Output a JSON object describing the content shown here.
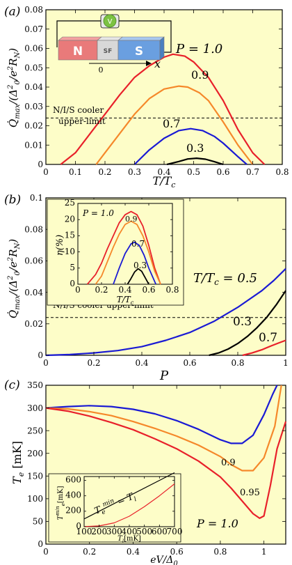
{
  "chart_data": [
    {
      "panel_label": "(a)",
      "type": "line",
      "xlabel": "T/T_c",
      "ylabel": "Q̇_max/(Δ_0^2/e^2 R_N)",
      "xlim": [
        0,
        0.8
      ],
      "ylim": [
        0,
        0.08
      ],
      "xticks": [
        0,
        0.1,
        0.2,
        0.3,
        0.4,
        0.5,
        0.6,
        0.7,
        0.8
      ],
      "yticks": [
        0,
        0.01,
        0.02,
        0.03,
        0.04,
        0.05,
        0.06,
        0.07,
        0.08
      ],
      "xtick_labels": [
        "0",
        "0.1",
        "0.2",
        "0.3",
        "0.4",
        "0.5",
        "0.6",
        "0.7",
        "0.8"
      ],
      "ytick_labels": [
        "0",
        "0.01",
        "0.02",
        "0.03",
        "0.04",
        "0.05",
        "0.06",
        "0.07",
        "0.08"
      ],
      "series": [
        {
          "name": "P = 1.0",
          "color": "#e8202a",
          "x": [
            0.05,
            0.1,
            0.15,
            0.2,
            0.25,
            0.3,
            0.35,
            0.4,
            0.43,
            0.47,
            0.5,
            0.55,
            0.6,
            0.65,
            0.7,
            0.74
          ],
          "values": [
            0.0,
            0.006,
            0.016,
            0.026,
            0.036,
            0.045,
            0.051,
            0.0555,
            0.057,
            0.056,
            0.053,
            0.045,
            0.033,
            0.018,
            0.006,
            0.0
          ]
        },
        {
          "name": "0.9",
          "color": "#f5882a",
          "x": [
            0.17,
            0.2,
            0.25,
            0.3,
            0.35,
            0.4,
            0.45,
            0.48,
            0.52,
            0.55,
            0.6,
            0.65,
            0.7
          ],
          "values": [
            0.0,
            0.006,
            0.016,
            0.026,
            0.034,
            0.039,
            0.0405,
            0.04,
            0.037,
            0.033,
            0.022,
            0.01,
            0.0
          ]
        },
        {
          "name": "0.7",
          "color": "#1a1ad4",
          "x": [
            0.3,
            0.35,
            0.4,
            0.45,
            0.49,
            0.53,
            0.57,
            0.6,
            0.65,
            0.68
          ],
          "values": [
            0.0,
            0.0075,
            0.0135,
            0.0175,
            0.0185,
            0.0175,
            0.0145,
            0.011,
            0.004,
            0.0
          ]
        },
        {
          "name": "0.3",
          "color": "#000000",
          "x": [
            0.41,
            0.45,
            0.48,
            0.51,
            0.54,
            0.57,
            0.6
          ],
          "values": [
            0.0,
            0.0015,
            0.0028,
            0.0032,
            0.0027,
            0.0014,
            0.0
          ]
        }
      ],
      "reference_line": {
        "y": 0.024,
        "label_line1": "N/I/S cooler",
        "label_line2": "upper-limit"
      },
      "annotations": [
        {
          "text": "P = 1.0",
          "color": "#e8202a"
        },
        {
          "text": "0.9",
          "color": "#f5882a"
        },
        {
          "text": "0.7",
          "color": "#1a1ad4"
        },
        {
          "text": "0.3",
          "color": "#000000"
        }
      ],
      "inset_schematic": {
        "left_block": "N",
        "middle_block": "SF",
        "right_block": "S",
        "meter": "V",
        "axis_origin": "0",
        "axis_label": "x"
      }
    },
    {
      "panel_label": "(b)",
      "type": "line",
      "xlabel": "P",
      "ylabel": "Q̇_max/(Δ_0^2/e^2 R_N)",
      "xlim": [
        0,
        1
      ],
      "ylim": [
        0,
        0.1
      ],
      "xticks": [
        0,
        0.2,
        0.4,
        0.6,
        0.8,
        1
      ],
      "yticks": [
        0,
        0.02,
        0.04,
        0.06,
        0.08,
        0.1
      ],
      "xtick_labels": [
        "0",
        "0.2",
        "0.4",
        "0.6",
        "0.8",
        "1"
      ],
      "ytick_labels": [
        "0",
        "0.02",
        "0.04",
        "0.06",
        "0.08",
        "0.1"
      ],
      "series": [
        {
          "name": "T/T_c = 0.5",
          "color": "#1a1ad4",
          "x": [
            0,
            0.1,
            0.2,
            0.3,
            0.4,
            0.5,
            0.6,
            0.7,
            0.8,
            0.9,
            0.95,
            1.0
          ],
          "values": [
            0.0,
            0.0005,
            0.0015,
            0.003,
            0.0055,
            0.0095,
            0.0145,
            0.0215,
            0.0305,
            0.041,
            0.0475,
            0.055
          ]
        },
        {
          "name": "0.3",
          "color": "#000000",
          "x": [
            0.68,
            0.72,
            0.76,
            0.8,
            0.84,
            0.88,
            0.92,
            0.96,
            1.0
          ],
          "values": [
            0.0,
            0.0015,
            0.004,
            0.0075,
            0.012,
            0.0175,
            0.024,
            0.032,
            0.041
          ]
        },
        {
          "name": "0.7",
          "color": "#e8202a",
          "x": [
            0.82,
            0.86,
            0.9,
            0.94,
            0.97,
            1.0
          ],
          "values": [
            0.0,
            0.0015,
            0.0035,
            0.006,
            0.0078,
            0.0095
          ]
        }
      ],
      "reference_line": {
        "y": 0.024,
        "label": "N/I/S cooler upper-limit"
      },
      "annotations": [
        {
          "text": "T/T_c = 0.5",
          "color": "#1a1ad4"
        },
        {
          "text": "0.3",
          "color": "#000000"
        },
        {
          "text": "0.7",
          "color": "#e8202a"
        }
      ],
      "inset": {
        "type": "line",
        "xlabel": "T/T_c",
        "ylabel": "η(%)",
        "xlim": [
          0,
          0.8
        ],
        "ylim": [
          0,
          25
        ],
        "xticks": [
          0,
          0.2,
          0.4,
          0.6,
          0.8
        ],
        "yticks": [
          0,
          5,
          10,
          15,
          20,
          25
        ],
        "xtick_labels": [
          "0",
          "0.2",
          "0.4",
          "0.6",
          "0.8"
        ],
        "ytick_labels": [
          "0",
          "5",
          "10",
          "15",
          "20",
          "25"
        ],
        "series": [
          {
            "name": "P = 1.0",
            "color": "#e8202a",
            "x": [
              0.08,
              0.15,
              0.2,
              0.25,
              0.3,
              0.35,
              0.4,
              0.45,
              0.5,
              0.55,
              0.6,
              0.65,
              0.7
            ],
            "values": [
              0,
              3,
              6.5,
              11,
              15,
              19,
              21.5,
              22.5,
              21.5,
              18,
              12,
              5,
              0
            ]
          },
          {
            "name": "0.9",
            "color": "#f5882a",
            "x": [
              0.15,
              0.2,
              0.25,
              0.3,
              0.35,
              0.4,
              0.45,
              0.5,
              0.55,
              0.6,
              0.65,
              0.7
            ],
            "values": [
              0,
              2.5,
              7,
              11.5,
              15.5,
              18.5,
              19.5,
              18.5,
              15,
              10,
              4,
              0
            ]
          },
          {
            "name": "0.7",
            "color": "#1a1ad4",
            "x": [
              0.3,
              0.35,
              0.4,
              0.45,
              0.48,
              0.52,
              0.56,
              0.6,
              0.66
            ],
            "values": [
              0,
              5,
              9.5,
              12.5,
              13,
              12,
              9,
              5,
              0
            ]
          },
          {
            "name": "0.3",
            "color": "#000000",
            "x": [
              0.42,
              0.45,
              0.48,
              0.51,
              0.54,
              0.57,
              0.6
            ],
            "values": [
              0,
              1.8,
              3.8,
              4.8,
              4,
              2,
              0
            ]
          }
        ],
        "annotations": [
          {
            "text": "P = 1.0",
            "color": "#e8202a"
          },
          {
            "text": "0.9",
            "color": "#f5882a"
          },
          {
            "text": "0.7",
            "color": "#1a1ad4"
          },
          {
            "text": "0.3",
            "color": "#000000"
          }
        ]
      }
    },
    {
      "panel_label": "(c)",
      "type": "line",
      "xlabel": "eV/Δ_0",
      "ylabel": "T_e [mK]",
      "xlim": [
        0,
        1.1
      ],
      "ylim": [
        0,
        350
      ],
      "xticks": [
        0,
        0.2,
        0.4,
        0.6,
        0.8,
        1
      ],
      "yticks": [
        0,
        50,
        100,
        150,
        200,
        250,
        300,
        350
      ],
      "xtick_labels": [
        "0",
        "0.2",
        "0.4",
        "0.6",
        "0.8",
        "1"
      ],
      "ytick_labels": [
        "0",
        "50",
        "100",
        "150",
        "200",
        "250",
        "300",
        "350"
      ],
      "series": [
        {
          "name": "0.9",
          "color": "#1a1ad4",
          "x": [
            0,
            0.1,
            0.2,
            0.3,
            0.4,
            0.5,
            0.6,
            0.7,
            0.8,
            0.85,
            0.9,
            0.95,
            1.0,
            1.04,
            1.06
          ],
          "values": [
            300,
            303,
            305,
            303,
            297,
            287,
            272,
            253,
            230,
            222,
            222,
            240,
            285,
            330,
            355
          ]
        },
        {
          "name": "0.95",
          "color": "#f5882a",
          "x": [
            0,
            0.1,
            0.2,
            0.3,
            0.4,
            0.5,
            0.6,
            0.7,
            0.8,
            0.85,
            0.9,
            0.95,
            1.0,
            1.05,
            1.08
          ],
          "values": [
            300,
            298,
            292,
            283,
            270,
            255,
            238,
            218,
            193,
            175,
            162,
            162,
            190,
            260,
            350
          ]
        },
        {
          "name": "P = 1.0",
          "color": "#e8202a",
          "x": [
            0,
            0.1,
            0.2,
            0.3,
            0.4,
            0.5,
            0.6,
            0.7,
            0.8,
            0.85,
            0.9,
            0.95,
            0.98,
            1.0,
            1.03,
            1.06,
            1.1
          ],
          "values": [
            300,
            293,
            282,
            268,
            252,
            232,
            210,
            183,
            148,
            123,
            95,
            67,
            57,
            62,
            130,
            210,
            270
          ]
        }
      ],
      "annotations": [
        {
          "text": "0.9",
          "color": "#1a1ad4"
        },
        {
          "text": "0.95",
          "color": "#f5882a"
        },
        {
          "text": "P = 1.0",
          "color": "#e8202a"
        }
      ],
      "inset": {
        "type": "line",
        "xlabel": "T_l [mK]",
        "ylabel": "T_e^min [mK]",
        "xlim": [
          100,
          700
        ],
        "ylim": [
          0,
          650
        ],
        "xticks": [
          100,
          200,
          300,
          400,
          500,
          600,
          700
        ],
        "yticks": [
          0,
          200,
          400,
          600
        ],
        "xtick_labels": [
          "100",
          "200",
          "300",
          "400",
          "500",
          "600",
          "700"
        ],
        "ytick_labels": [
          "0",
          "200",
          "400",
          "600"
        ],
        "series": [
          {
            "name": "T_e^min = T_l",
            "color": "#000000",
            "x": [
              100,
              700
            ],
            "values": [
              100,
              700
            ]
          },
          {
            "name": "P = 1.0",
            "color": "#e8202a",
            "x": [
              100,
              200,
              300,
              400,
              500,
              600,
              700
            ],
            "values": [
              2,
              10,
              50,
              135,
              260,
              400,
              555
            ]
          }
        ],
        "annotation": "T_e^min = T_l"
      }
    }
  ]
}
